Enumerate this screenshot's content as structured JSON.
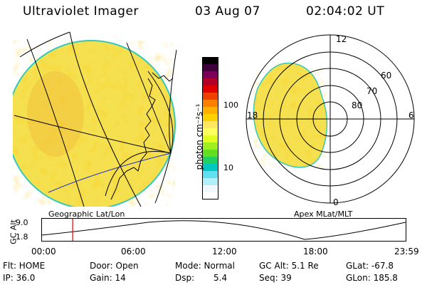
{
  "header": {
    "instrument": "Ultraviolet Imager",
    "date": "03 Aug 07",
    "time": "02:04:02 UT"
  },
  "colorbar": {
    "unit_label": "photon cm⁻²s⁻¹",
    "tick_100": "100",
    "tick_10": "10",
    "colors": [
      "#000000",
      "#3c003c",
      "#7a005a",
      "#b20028",
      "#e00000",
      "#f04000",
      "#ff8000",
      "#ffb000",
      "#ffd000",
      "#ffe860",
      "#ffff60",
      "#e0ff20",
      "#a0f020",
      "#60e020",
      "#20d060",
      "#00c8c0",
      "#60e0f0",
      "#b0f0f8",
      "#f0f8fc",
      "#ffffff"
    ]
  },
  "left_image": {
    "projection_label": "Geographic Lat/Lon",
    "fill_color": "#f5e050",
    "edge_color": "#30c8c0"
  },
  "right_image": {
    "projection_label": "Apex MLat/MLT",
    "mlt_labels": {
      "top": "12",
      "bottom": "0",
      "left": "18",
      "right": "6"
    },
    "mlat_labels": [
      "60",
      "70",
      "80"
    ],
    "fill_color": "#f5e050"
  },
  "alt_plot": {
    "y_label": "GC Alt",
    "y_top": "9.0",
    "y_bottom": "1.8",
    "x_ticks": [
      "00:00",
      "06:00",
      "12:00",
      "18:00",
      "23:59"
    ],
    "current_time_hours": 2.067,
    "marker_color": "#e00000"
  },
  "status": {
    "flt": "Flt: HOME",
    "ip": "IP: 36.0",
    "door": "Door: Open",
    "gain": "Gain: 14",
    "mode": "Mode: Normal",
    "dsp_label": "Dsp:",
    "dsp_value": "5.4",
    "gcalt": "GC Alt: 5.1 Re",
    "seq": "Seq: 39",
    "glat": "GLat: -67.8",
    "glon": "GLon: 185.8"
  }
}
